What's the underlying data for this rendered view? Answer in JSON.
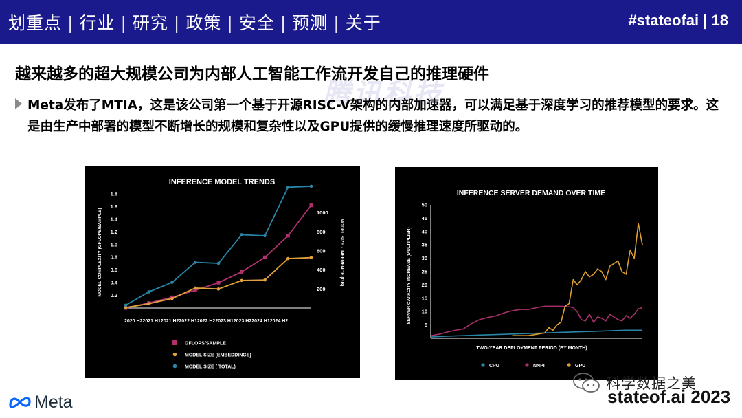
{
  "header": {
    "nav_items": [
      "划重点",
      "行业",
      "研究",
      "政策",
      "安全",
      "预测",
      "关于"
    ],
    "separator": "|",
    "slide_tag": "#stateofai | 18"
  },
  "title": "越来越多的超大规模公司为内部人工智能工作流开发自己的推理硬件",
  "bullet_text": "Meta发布了MTIA，这是该公司第一个基于开源RISC-V架构的内部加速器，可以满足基于深度学习的推荐模型的要求。这是由生产中部署的模型不断增长的规模和复杂性以及GPU提供的缓慢推理速度所驱动的。",
  "watermark": "腾讯科技",
  "footer": {
    "logo_text": "Meta",
    "wechat_watermark": "科学数据之美",
    "brand": "stateof.ai 2023"
  },
  "colors": {
    "header_bg": "#1b1a8c",
    "gflops": "#b2306e",
    "embeddings": "#e0a03a",
    "total": "#2a86a8",
    "cpu": "#2a86a8",
    "nnpi": "#a8306c",
    "gpu": "#e0a030"
  },
  "chart_data": [
    {
      "type": "line",
      "title": "INFERENCE MODEL TRENDS",
      "categories": [
        "2020 H2",
        "2021 H1",
        "2021 H2",
        "2022 H1",
        "2022 H2",
        "2023 H1",
        "2023 H2",
        "2024 H1",
        "2024 H2"
      ],
      "tick_labels": [
        "2020 H2",
        "2021",
        "H1",
        "2021",
        "H2",
        "2022",
        "H1",
        "2022",
        "H2",
        "2023",
        "H1",
        "2023",
        "H2",
        "2024",
        "H1",
        "2024",
        "H2"
      ],
      "xtick_text": "2020 H22021 H12021 H22022 H12022 H22023 H12023 H22024 H12024 H2",
      "ylabel": "MODEL COMPLEXITY (GFLOPS/SAMPLE)",
      "ylabel_right": "MODEL SIZE - INFERENCE (GB)",
      "ylim": [
        0,
        1.8
      ],
      "yticks": [
        0.2,
        0.4,
        0.6,
        0.8,
        1.0,
        1.2,
        1.4,
        1.6,
        1.8
      ],
      "ytick_labels": [
        "0.2",
        "0.4",
        "0.6",
        "0.8",
        "1.0",
        "1.2",
        "1.4",
        "1.6",
        "1.8"
      ],
      "ylim_right": [
        0,
        1200
      ],
      "yticks_right": [
        200,
        400,
        600,
        800,
        1000
      ],
      "series": [
        {
          "name": "GFLOPS/SAMPLE",
          "axis": "left",
          "marker": "square",
          "values": [
            0.0,
            0.08,
            0.17,
            0.28,
            0.4,
            0.57,
            0.8,
            1.14,
            1.62
          ]
        },
        {
          "name": "MODEL SIZE (EMBEDDINGS)",
          "axis": "right",
          "marker": "circle",
          "values": [
            5,
            45,
            100,
            210,
            200,
            290,
            295,
            520,
            530
          ]
        },
        {
          "name": "MODEL SIZE ( TOTAL)",
          "axis": "right",
          "marker": "circle",
          "values": [
            30,
            170,
            270,
            480,
            470,
            770,
            760,
            1270,
            1280
          ]
        }
      ],
      "legend": "bottom"
    },
    {
      "type": "line",
      "title": "INFERENCE SERVER DEMAND OVER TIME",
      "xlabel": "TWO-YEAR DEPLOYMENT PERIOD (BY MONTH)",
      "ylabel": "SERVER CAPACITY INCREASE (MULTIPLIER)",
      "ylim": [
        0,
        50
      ],
      "yticks": [
        5,
        10,
        15,
        20,
        25,
        30,
        35,
        40,
        45,
        50
      ],
      "ytick_labels": [
        "5",
        "10",
        "15",
        "20",
        "25",
        "30",
        "35",
        "40",
        "45",
        "50"
      ],
      "xlim": [
        0,
        104
      ],
      "series": [
        {
          "name": "CPU",
          "x": [
            0,
            8,
            16,
            24,
            32,
            40,
            48,
            56,
            64,
            72,
            80,
            88,
            96,
            104
          ],
          "values": [
            0.5,
            0.8,
            1.0,
            1.2,
            1.4,
            1.6,
            1.8,
            2.0,
            2.2,
            2.4,
            2.6,
            2.8,
            3.0,
            3.0
          ]
        },
        {
          "name": "NNPI",
          "x": [
            0,
            4,
            8,
            12,
            16,
            20,
            24,
            28,
            32,
            36,
            40,
            44,
            48,
            52,
            56,
            60,
            64,
            68,
            70,
            72,
            74,
            76,
            78,
            80,
            82,
            84,
            86,
            88,
            90,
            92,
            94,
            96,
            98,
            100,
            102,
            104
          ],
          "values": [
            1.0,
            1.5,
            2.3,
            3.0,
            3.5,
            5.5,
            7.0,
            7.8,
            8.4,
            9.5,
            10.3,
            10.8,
            10.8,
            11.5,
            12.0,
            12.0,
            12.0,
            11.8,
            11.5,
            10.0,
            7.0,
            6.5,
            9.0,
            6.0,
            8.0,
            7.5,
            6.5,
            9.0,
            8.0,
            7.0,
            6.5,
            8.5,
            7.5,
            9.0,
            11.0,
            11.5
          ]
        },
        {
          "name": "GPU",
          "x": [
            40,
            48,
            52,
            56,
            58,
            60,
            62,
            64,
            66,
            68,
            70,
            72,
            74,
            76,
            78,
            80,
            82,
            84,
            86,
            88,
            90,
            92,
            94,
            96,
            98,
            100,
            102,
            104
          ],
          "values": [
            1.0,
            1.0,
            1.5,
            2.0,
            4.0,
            3.0,
            5.0,
            6.0,
            12.0,
            13.0,
            22.0,
            20.0,
            22.0,
            25.0,
            23.0,
            24.0,
            26.0,
            25.0,
            22.0,
            27.0,
            28.0,
            29.0,
            25.0,
            24.0,
            33.0,
            30.0,
            43.0,
            35.0
          ]
        }
      ],
      "legend": "bottom"
    }
  ]
}
